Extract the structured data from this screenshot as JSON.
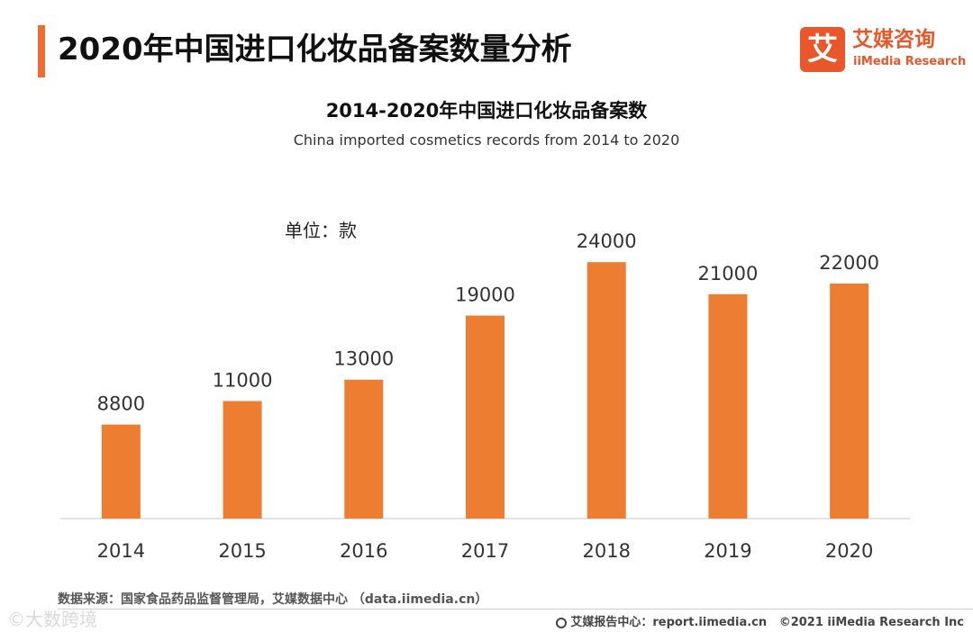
{
  "page": {
    "title": "2020年中国进口化妆品备案数量分析"
  },
  "logo": {
    "mark": "艾",
    "name_cn": "艾媒咨询",
    "name_en": "iiMedia Research"
  },
  "chart_data": {
    "type": "bar",
    "title": "2014-2020年中国进口化妆品备案数",
    "subtitle": "China imported cosmetics records from 2014 to 2020",
    "unit": "单位：款",
    "categories": [
      "2014",
      "2015",
      "2016",
      "2017",
      "2018",
      "2019",
      "2020"
    ],
    "values": [
      8800,
      11000,
      13000,
      19000,
      24000,
      21000,
      22000
    ],
    "ylim": [
      0,
      30000
    ],
    "grid": false,
    "legend": "none",
    "bar_color": "#ed7d31",
    "axis_color": "#d9d9d9"
  },
  "source": "数据来源：国家食品药品监督管理局，艾媒数据中心 （data.iimedia.cn）",
  "watermark": "©大数跨境",
  "footer": {
    "report": "艾媒报告中心：report.iimedia.cn",
    "copyright": "©2021  iiMedia Research  Inc"
  }
}
